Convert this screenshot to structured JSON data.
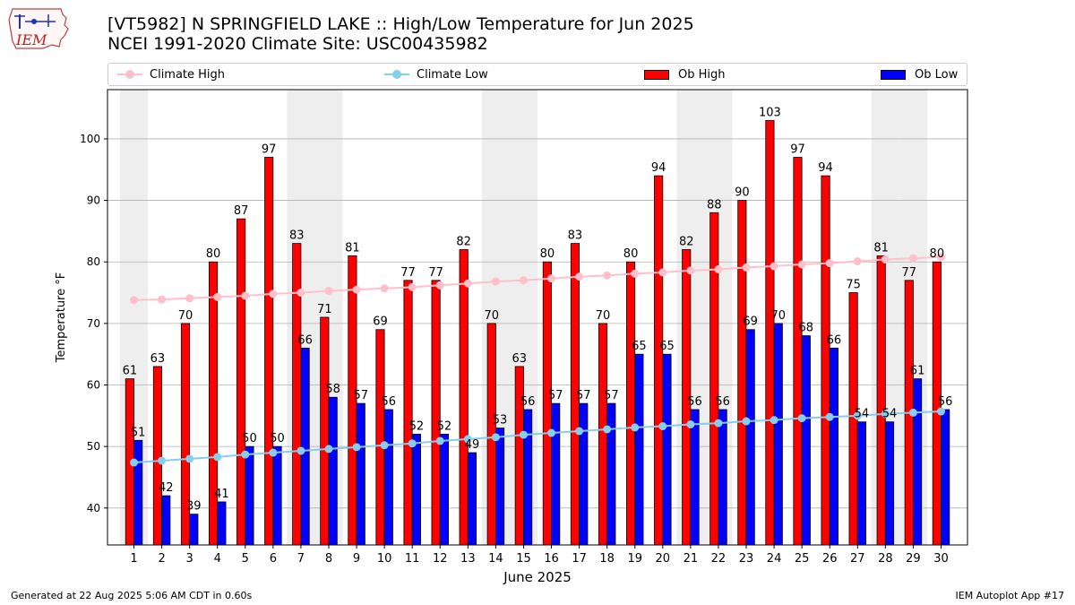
{
  "header": {
    "title_line1": "[VT5982] N SPRINGFIELD LAKE :: High/Low Temperature for Jun 2025",
    "title_line2": "NCEI 1991-2020 Climate Site: USC00435982"
  },
  "logo": {
    "text": "IEM"
  },
  "footer": {
    "left": "Generated at 22 Aug 2025 5:06 AM CDT in 0.60s",
    "right": "IEM Autoplot App #17"
  },
  "colors": {
    "climate_high": "#ffc0cb",
    "climate_low": "#87ceeb",
    "ob_high": "#ff0000",
    "ob_low": "#0000ff",
    "weekend_band": "#eeeeee",
    "grid": "#b0b0b0"
  },
  "chart_data": {
    "type": "bar",
    "xlabel": "June 2025",
    "ylabel": "Temperature °F",
    "ylim": [
      34,
      108
    ],
    "yticks": [
      40,
      50,
      60,
      70,
      80,
      90,
      100
    ],
    "grid": "horizontal",
    "legend_position": "top",
    "weekend_days": [
      1,
      7,
      8,
      14,
      15,
      21,
      22,
      28,
      29
    ],
    "categories": [
      1,
      2,
      3,
      4,
      5,
      6,
      7,
      8,
      9,
      10,
      11,
      12,
      13,
      14,
      15,
      16,
      17,
      18,
      19,
      20,
      21,
      22,
      23,
      24,
      25,
      26,
      27,
      28,
      29,
      30
    ],
    "series": [
      {
        "name": "Climate High",
        "type": "line",
        "values": [
          73.8,
          73.9,
          74.1,
          74.3,
          74.5,
          74.8,
          75.0,
          75.3,
          75.5,
          75.7,
          75.9,
          76.2,
          76.5,
          76.8,
          77.0,
          77.3,
          77.6,
          77.8,
          78.1,
          78.3,
          78.6,
          78.8,
          79.1,
          79.3,
          79.6,
          79.8,
          80.1,
          80.4,
          80.6,
          80.8
        ]
      },
      {
        "name": "Climate Low",
        "type": "line",
        "values": [
          47.4,
          47.7,
          48.0,
          48.3,
          48.7,
          49.0,
          49.3,
          49.6,
          49.9,
          50.2,
          50.5,
          50.9,
          51.2,
          51.5,
          51.9,
          52.2,
          52.5,
          52.8,
          53.1,
          53.3,
          53.6,
          53.8,
          54.1,
          54.3,
          54.6,
          54.8,
          55.0,
          55.3,
          55.5,
          55.7
        ]
      },
      {
        "name": "Ob High",
        "type": "bar",
        "values": [
          61,
          63,
          70,
          80,
          87,
          97,
          83,
          71,
          81,
          69,
          77,
          77,
          82,
          70,
          63,
          80,
          83,
          70,
          80,
          94,
          82,
          88,
          90,
          103,
          97,
          94,
          75,
          81,
          77,
          80
        ]
      },
      {
        "name": "Ob Low",
        "type": "bar",
        "values": [
          51,
          42,
          39,
          41,
          50,
          50,
          66,
          58,
          57,
          56,
          52,
          52,
          49,
          53,
          56,
          57,
          57,
          57,
          65,
          65,
          56,
          56,
          69,
          70,
          68,
          66,
          54,
          54,
          61,
          56
        ]
      }
    ]
  }
}
